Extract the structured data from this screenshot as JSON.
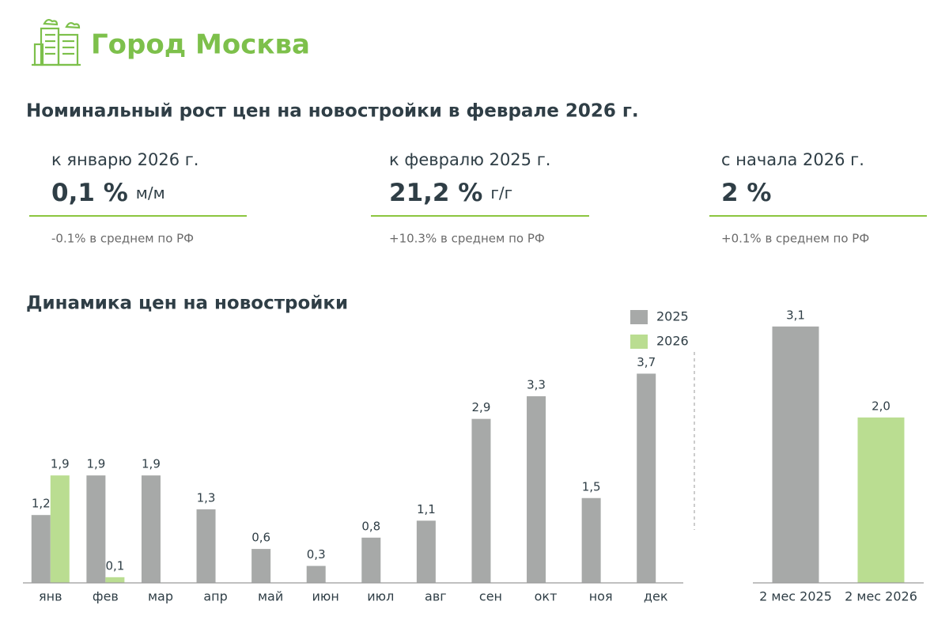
{
  "header": {
    "title": "Город Москва",
    "subtitle": "Номинальный рост цен на новостройки в феврале 2026 г."
  },
  "kpis": [
    {
      "label": "к январю 2026 г.",
      "value": "0,1 %",
      "unit": "м/м",
      "note": "-0.1% в среднем по РФ"
    },
    {
      "label": "к февралю 2025 г.",
      "value": "21,2 %",
      "unit": "г/г",
      "note": "+10.3% в среднем по РФ"
    },
    {
      "label": "с начала 2026 г.",
      "value": "2 %",
      "note": "+0.1% в среднем по РФ"
    }
  ],
  "chart_data": [
    {
      "type": "bar",
      "title": "Динамика цен на новостройки",
      "categories": [
        "янв",
        "фев",
        "мар",
        "апр",
        "май",
        "июн",
        "июл",
        "авг",
        "сен",
        "окт",
        "ноя",
        "дек"
      ],
      "series": [
        {
          "name": "2025",
          "color": "#a7a9a8",
          "values": [
            1.2,
            1.9,
            1.9,
            1.3,
            0.6,
            0.3,
            0.8,
            1.1,
            2.9,
            3.3,
            1.5,
            3.7
          ],
          "value_labels": [
            "1,2",
            "1,9",
            "1,9",
            "1,3",
            "0,6",
            "0,3",
            "0,8",
            "1,1",
            "2,9",
            "3,3",
            "1,5",
            "3,7"
          ]
        },
        {
          "name": "2026",
          "color": "#badd91",
          "values": [
            1.9,
            0.1,
            null,
            null,
            null,
            null,
            null,
            null,
            null,
            null,
            null,
            null
          ],
          "value_labels": [
            "1,9",
            "0,1",
            null,
            null,
            null,
            null,
            null,
            null,
            null,
            null,
            null,
            null
          ]
        }
      ],
      "ylim": [
        0,
        4
      ]
    },
    {
      "type": "bar",
      "categories": [
        "2 мес 2025",
        "2 мес 2026"
      ],
      "values": [
        3.1,
        2.0
      ],
      "value_labels": [
        "3,1",
        "2,0"
      ],
      "colors": [
        "#a7a9a8",
        "#badd91"
      ],
      "ylim": [
        0,
        3.5
      ]
    }
  ]
}
